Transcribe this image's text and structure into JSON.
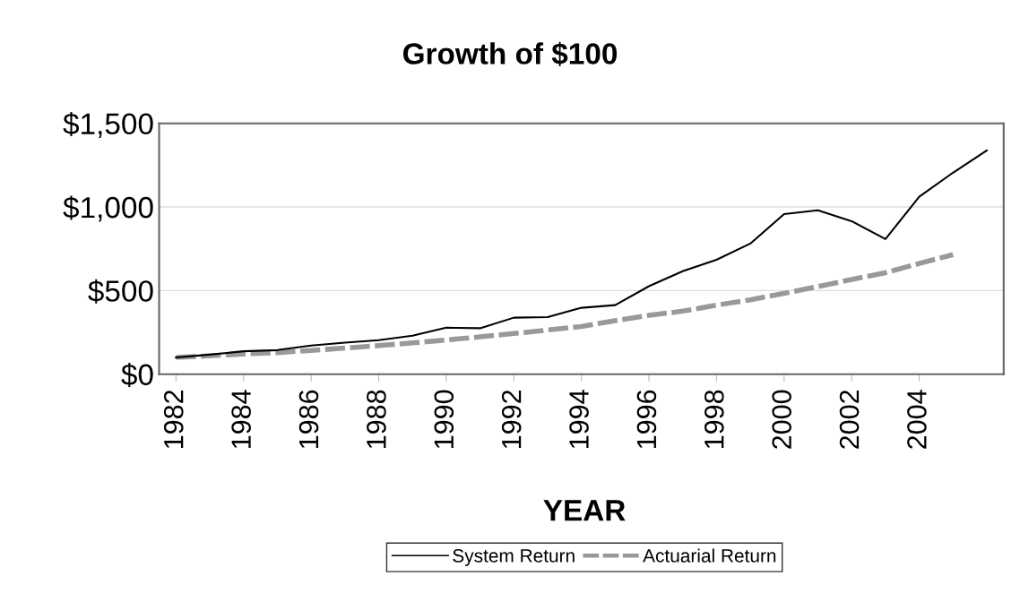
{
  "chart_data": {
    "type": "line",
    "title": "Growth of $100",
    "xlabel": "YEAR",
    "categories": [
      "1982",
      null,
      "1984",
      null,
      "1986",
      null,
      "1988",
      null,
      "1990",
      null,
      "1992",
      null,
      "1994",
      null,
      "1996",
      null,
      "1998",
      null,
      "2000",
      null,
      "2002",
      null,
      "2004",
      null,
      null
    ],
    "series": [
      {
        "name": "System Return",
        "color": "#000000",
        "line_style": "solid",
        "values": [
          100,
          117,
          137,
          144,
          171,
          189,
          203,
          230,
          278,
          275,
          338,
          341,
          397,
          413,
          526,
          616,
          684,
          781,
          957,
          980,
          915,
          808,
          1061,
          1205,
          1338
        ]
      },
      {
        "name": "Actuarial Return",
        "color": "#999999",
        "line_style": "dashed",
        "values": [
          100,
          110,
          121,
          129,
          142,
          156,
          171,
          187,
          205,
          223,
          243,
          264,
          285,
          320,
          352,
          377,
          413,
          445,
          483,
          524,
          566,
          607,
          662,
          715,
          null
        ]
      }
    ],
    "ylim": [
      0,
      1500
    ],
    "yticks": [
      {
        "value": 0,
        "label": "$0"
      },
      {
        "value": 500,
        "label": "$500"
      },
      {
        "value": 1000,
        "label": "$1,000"
      },
      {
        "value": 1500,
        "label": "$1,500"
      }
    ],
    "grid": "y",
    "legend": "bottom"
  }
}
